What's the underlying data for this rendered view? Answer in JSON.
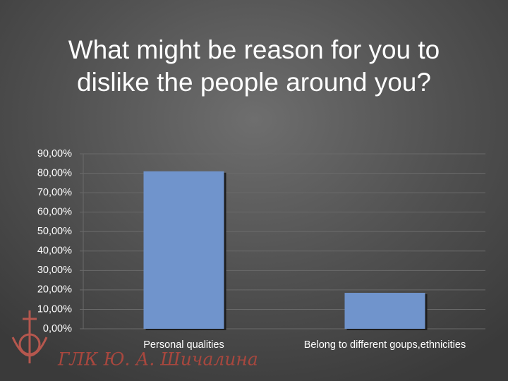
{
  "chart_data": {
    "type": "bar",
    "title": "What might be reason for you to dislike the people around you?",
    "categories": [
      "Personal qualities",
      "Belong to different goups,ethnicities"
    ],
    "values": [
      81,
      18.5
    ],
    "color": "#7094cc",
    "ylim": [
      0,
      90
    ],
    "yticks": [
      {
        "value": 0,
        "label": "0,00%"
      },
      {
        "value": 10,
        "label": "10,00%"
      },
      {
        "value": 20,
        "label": "20,00%"
      },
      {
        "value": 30,
        "label": "30,00%"
      },
      {
        "value": 40,
        "label": "40,00%"
      },
      {
        "value": 50,
        "label": "50,00%"
      },
      {
        "value": 60,
        "label": "60,00%"
      },
      {
        "value": 70,
        "label": "70,00%"
      },
      {
        "value": 80,
        "label": "80,00%"
      },
      {
        "value": 90,
        "label": "90,00%"
      }
    ],
    "grid": true
  },
  "logo_text": "ГЛК Ю. А. Шичалина"
}
